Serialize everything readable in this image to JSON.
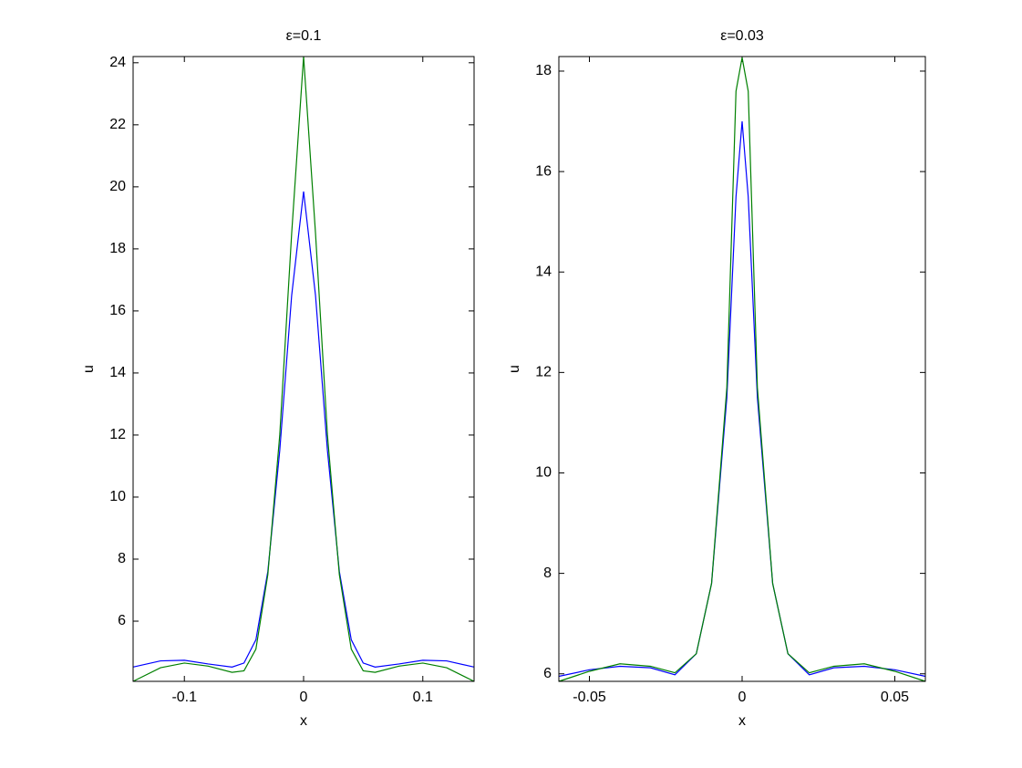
{
  "chart_data": [
    {
      "type": "line",
      "title": "ε=0.1",
      "x_label": "x",
      "y_label": "u",
      "x": [
        -0.143,
        -0.12,
        -0.1,
        -0.08,
        -0.06,
        -0.05,
        -0.04,
        -0.03,
        -0.02,
        -0.01,
        0,
        0.01,
        0.02,
        0.03,
        0.04,
        0.05,
        0.06,
        0.08,
        0.1,
        0.12,
        0.143
      ],
      "xlim": [
        -0.143,
        0.143
      ],
      "xticks": [
        -0.1,
        0,
        0.1
      ],
      "ylim": [
        4.06,
        24.2
      ],
      "yticks": [
        6,
        8,
        10,
        12,
        14,
        16,
        18,
        20,
        22,
        24
      ],
      "series": [
        {
          "color": "#0000ff",
          "values": [
            4.52,
            4.72,
            4.74,
            4.62,
            4.52,
            4.65,
            5.4,
            7.6,
            11.5,
            16.5,
            19.85,
            16.5,
            11.5,
            7.6,
            5.4,
            4.65,
            4.52,
            4.62,
            4.74,
            4.72,
            4.52
          ]
        },
        {
          "color": "#008000",
          "values": [
            4.06,
            4.5,
            4.65,
            4.55,
            4.35,
            4.4,
            5.1,
            7.5,
            12,
            18.5,
            24.2,
            18.5,
            12,
            7.5,
            5.1,
            4.4,
            4.35,
            4.55,
            4.65,
            4.5,
            4.06
          ]
        }
      ]
    },
    {
      "type": "line",
      "title": "ε=0.03",
      "x_label": "x",
      "y_label": "u",
      "x": [
        -0.06,
        -0.05,
        -0.04,
        -0.03,
        -0.022,
        -0.015,
        -0.01,
        -0.005,
        -0.002,
        0,
        0.002,
        0.005,
        0.01,
        0.015,
        0.022,
        0.03,
        0.04,
        0.05,
        0.06
      ],
      "xlim": [
        -0.06,
        0.06
      ],
      "xticks": [
        -0.05,
        0,
        0.05
      ],
      "ylim": [
        5.85,
        18.29
      ],
      "yticks": [
        6,
        8,
        10,
        12,
        14,
        16,
        18
      ],
      "series": [
        {
          "color": "#0000ff",
          "values": [
            5.95,
            6.08,
            6.15,
            6.12,
            5.98,
            6.4,
            7.8,
            11.5,
            15.5,
            17.0,
            15.5,
            11.5,
            7.8,
            6.4,
            5.98,
            6.12,
            6.15,
            6.08,
            5.95
          ]
        },
        {
          "color": "#008000",
          "values": [
            5.85,
            6.05,
            6.2,
            6.15,
            6.02,
            6.4,
            7.8,
            11.7,
            17.6,
            18.27,
            17.6,
            11.7,
            7.8,
            6.4,
            6.02,
            6.15,
            6.2,
            6.05,
            5.85
          ]
        }
      ]
    }
  ]
}
